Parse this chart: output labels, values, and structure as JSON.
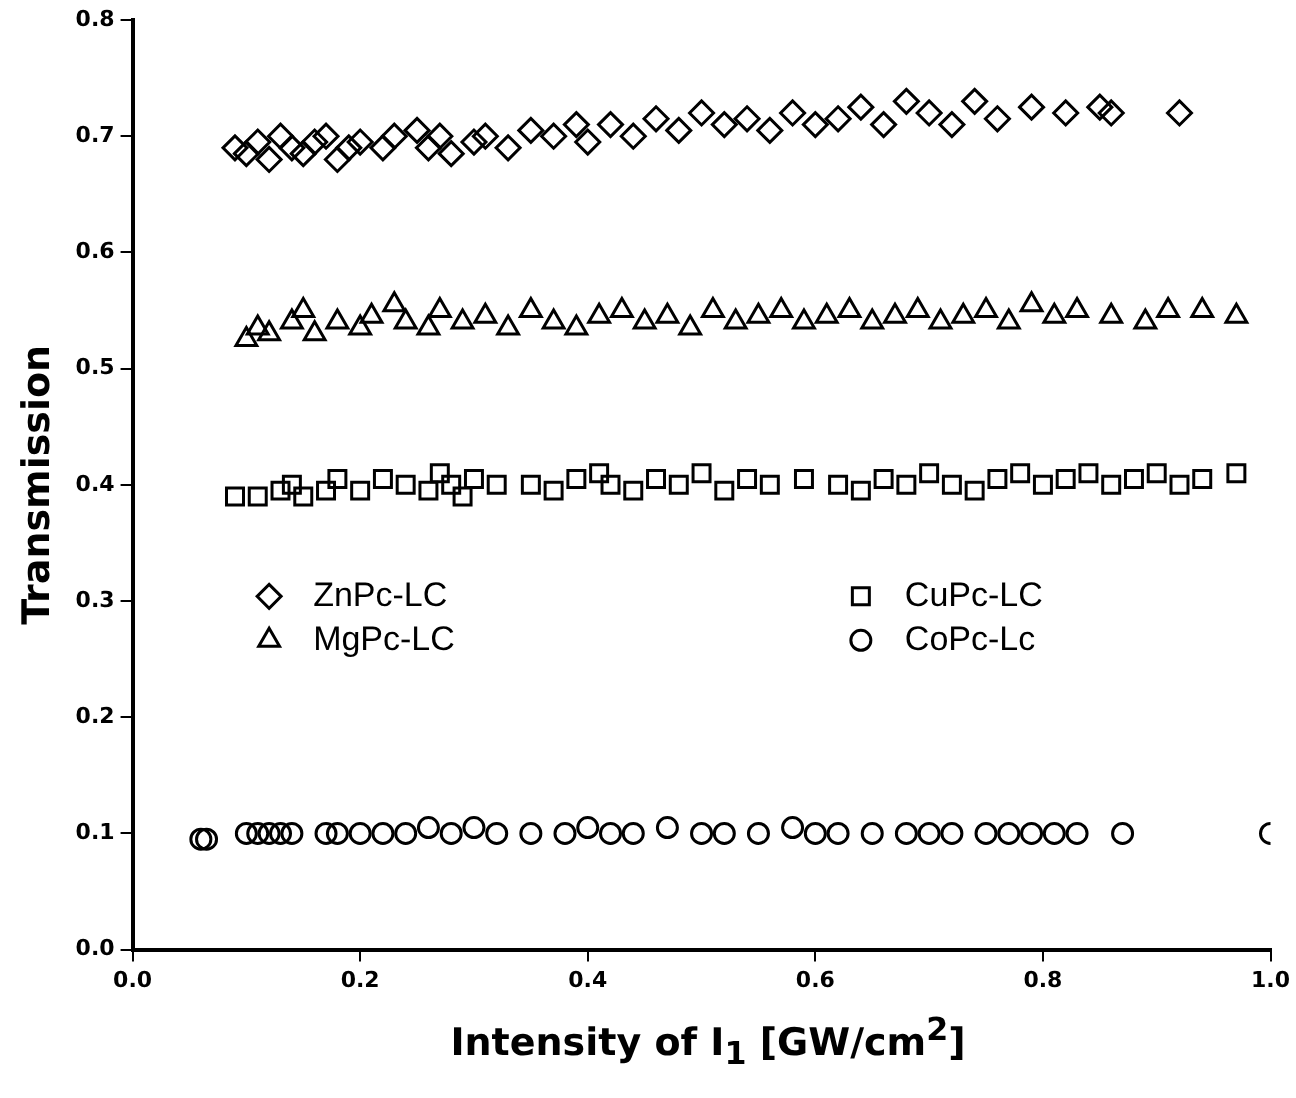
{
  "chart_data": {
    "type": "scatter",
    "xlabel": "Intensity of I$_{1}$ [GW/cm$^{2}$]",
    "ylabel": "Transmission",
    "xlim": [
      0,
      1
    ],
    "xticks": [
      {
        "value": 0,
        "label": "0.0"
      },
      0.2,
      0.4,
      0.6,
      0.8,
      {
        "value": 1,
        "label": "1.0"
      }
    ],
    "ylim": [
      0,
      0.8
    ],
    "yticks": [
      {
        "value": 0,
        "label": "0.0"
      },
      0.1,
      0.2,
      0.3,
      0.4,
      0.5,
      0.6,
      0.7,
      0.8
    ],
    "grid": false,
    "legend": "center",
    "series": [
      {
        "name": "ZnPc-LC",
        "color": "#000000",
        "marker": "diamond",
        "x": [
          0.09,
          0.1,
          0.11,
          0.12,
          0.13,
          0.14,
          0.15,
          0.16,
          0.17,
          0.18,
          0.19,
          0.2,
          0.22,
          0.23,
          0.25,
          0.26,
          0.27,
          0.28,
          0.3,
          0.31,
          0.33,
          0.35,
          0.37,
          0.39,
          0.4,
          0.42,
          0.44,
          0.46,
          0.48,
          0.5,
          0.52,
          0.54,
          0.56,
          0.58,
          0.6,
          0.62,
          0.64,
          0.66,
          0.68,
          0.7,
          0.72,
          0.74,
          0.76,
          0.79,
          0.82,
          0.85,
          0.86,
          0.92
        ],
        "values": [
          0.69,
          0.685,
          0.695,
          0.68,
          0.7,
          0.69,
          0.685,
          0.695,
          0.7,
          0.68,
          0.69,
          0.695,
          0.69,
          0.7,
          0.705,
          0.69,
          0.7,
          0.685,
          0.695,
          0.7,
          0.69,
          0.705,
          0.7,
          0.71,
          0.695,
          0.71,
          0.7,
          0.715,
          0.705,
          0.72,
          0.71,
          0.715,
          0.705,
          0.72,
          0.71,
          0.715,
          0.725,
          0.71,
          0.73,
          0.72,
          0.71,
          0.73,
          0.715,
          0.725,
          0.72,
          0.725,
          0.72,
          0.72
        ]
      },
      {
        "name": "CuPc-LC",
        "color": "#000000",
        "marker": "square",
        "x": [
          0.09,
          0.11,
          0.13,
          0.14,
          0.15,
          0.17,
          0.18,
          0.2,
          0.22,
          0.24,
          0.26,
          0.27,
          0.28,
          0.29,
          0.3,
          0.32,
          0.35,
          0.37,
          0.39,
          0.41,
          0.42,
          0.44,
          0.46,
          0.48,
          0.5,
          0.52,
          0.54,
          0.56,
          0.59,
          0.62,
          0.64,
          0.66,
          0.68,
          0.7,
          0.72,
          0.74,
          0.76,
          0.78,
          0.8,
          0.82,
          0.84,
          0.86,
          0.88,
          0.9,
          0.92,
          0.94,
          0.97
        ],
        "values": [
          0.39,
          0.39,
          0.395,
          0.4,
          0.39,
          0.395,
          0.405,
          0.395,
          0.405,
          0.4,
          0.395,
          0.41,
          0.4,
          0.39,
          0.405,
          0.4,
          0.4,
          0.395,
          0.405,
          0.41,
          0.4,
          0.395,
          0.405,
          0.4,
          0.41,
          0.395,
          0.405,
          0.4,
          0.405,
          0.4,
          0.395,
          0.405,
          0.4,
          0.41,
          0.4,
          0.395,
          0.405,
          0.41,
          0.4,
          0.405,
          0.41,
          0.4,
          0.405,
          0.41,
          0.4,
          0.405,
          0.41
        ]
      },
      {
        "name": "MgPc-LC",
        "color": "#000000",
        "marker": "triangle",
        "x": [
          0.1,
          0.11,
          0.12,
          0.14,
          0.15,
          0.16,
          0.18,
          0.2,
          0.21,
          0.23,
          0.24,
          0.26,
          0.27,
          0.29,
          0.31,
          0.33,
          0.35,
          0.37,
          0.39,
          0.41,
          0.43,
          0.45,
          0.47,
          0.49,
          0.51,
          0.53,
          0.55,
          0.57,
          0.59,
          0.61,
          0.63,
          0.65,
          0.67,
          0.69,
          0.71,
          0.73,
          0.75,
          0.77,
          0.79,
          0.81,
          0.83,
          0.86,
          0.89,
          0.91,
          0.94,
          0.97
        ],
        "values": [
          0.525,
          0.535,
          0.53,
          0.54,
          0.55,
          0.53,
          0.54,
          0.535,
          0.545,
          0.555,
          0.54,
          0.535,
          0.55,
          0.54,
          0.545,
          0.535,
          0.55,
          0.54,
          0.535,
          0.545,
          0.55,
          0.54,
          0.545,
          0.535,
          0.55,
          0.54,
          0.545,
          0.55,
          0.54,
          0.545,
          0.55,
          0.54,
          0.545,
          0.55,
          0.54,
          0.545,
          0.55,
          0.54,
          0.555,
          0.545,
          0.55,
          0.545,
          0.54,
          0.55,
          0.55,
          0.545
        ]
      },
      {
        "name": "CoPc-Lc",
        "color": "#000000",
        "marker": "circle",
        "x": [
          0.06,
          0.065,
          0.1,
          0.11,
          0.12,
          0.13,
          0.14,
          0.17,
          0.18,
          0.2,
          0.22,
          0.24,
          0.26,
          0.28,
          0.3,
          0.32,
          0.35,
          0.38,
          0.4,
          0.42,
          0.44,
          0.47,
          0.5,
          0.52,
          0.55,
          0.58,
          0.6,
          0.62,
          0.65,
          0.68,
          0.7,
          0.72,
          0.75,
          0.77,
          0.79,
          0.81,
          0.83,
          0.87,
          1.0
        ],
        "values": [
          0.095,
          0.095,
          0.1,
          0.1,
          0.1,
          0.1,
          0.1,
          0.1,
          0.1,
          0.1,
          0.1,
          0.1,
          0.105,
          0.1,
          0.105,
          0.1,
          0.1,
          0.1,
          0.105,
          0.1,
          0.1,
          0.105,
          0.1,
          0.1,
          0.1,
          0.105,
          0.1,
          0.1,
          0.1,
          0.1,
          0.1,
          0.1,
          0.1,
          0.1,
          0.1,
          0.1,
          0.1,
          0.1,
          0.1
        ]
      }
    ]
  }
}
